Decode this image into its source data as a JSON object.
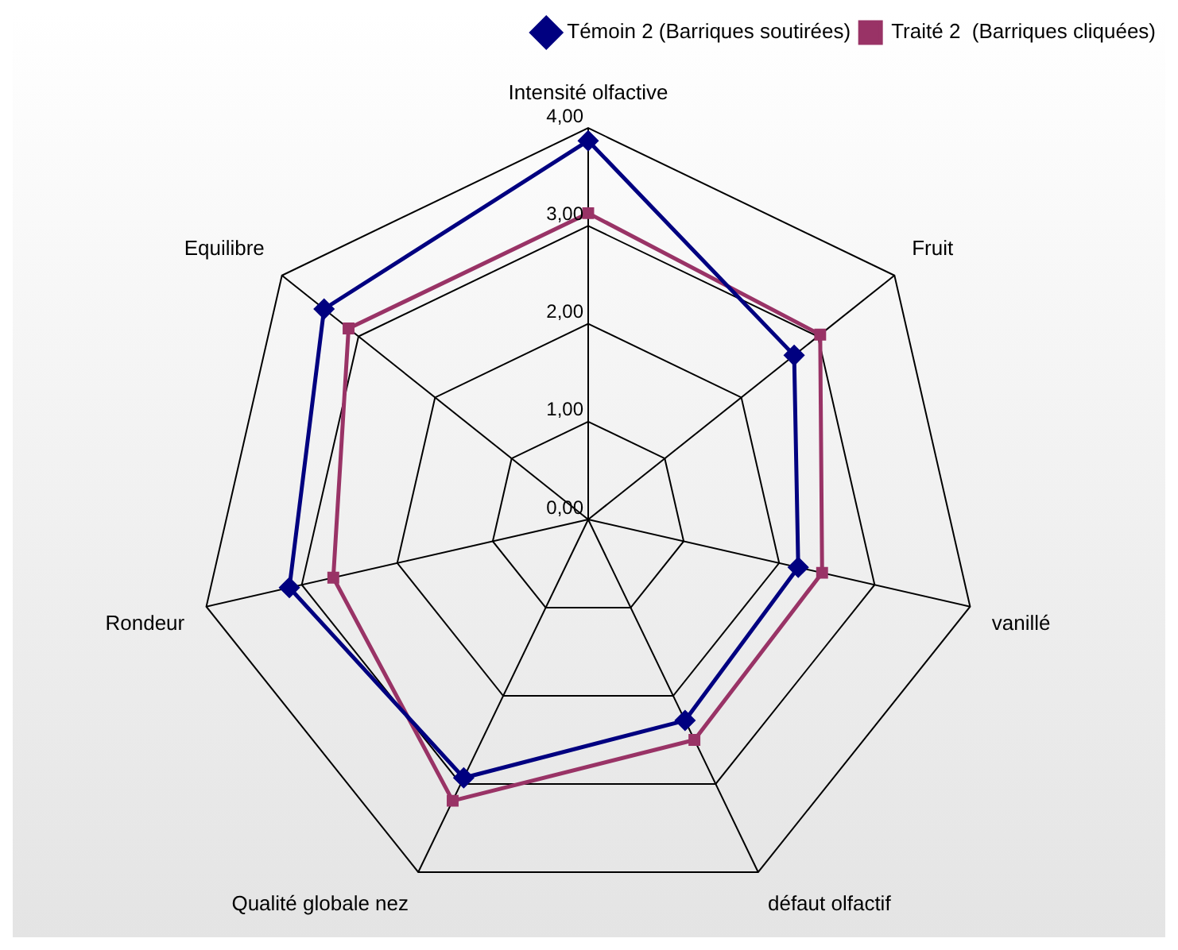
{
  "chart_data": {
    "type": "radar",
    "categories": [
      "Intensité olfactive",
      "Fruit",
      "vanillé",
      "défaut olfactif",
      "Qualité globale nez",
      "Rondeur",
      "Equilibre"
    ],
    "series": [
      {
        "name": "Témoin 2 (Barriques soutirées)",
        "color": "#000080",
        "marker": "diamond",
        "values": [
          3.87,
          2.69,
          2.2,
          2.28,
          2.93,
          3.13,
          3.45
        ]
      },
      {
        "name": "Traité 2  (Barriques cliquées)",
        "color": "#993366",
        "marker": "square",
        "values": [
          3.13,
          3.03,
          2.45,
          2.5,
          3.19,
          2.67,
          3.13
        ]
      }
    ],
    "ylim": [
      0,
      4
    ],
    "yticks": [
      {
        "value": 0,
        "label": "0,00"
      },
      {
        "value": 1,
        "label": "1,00"
      },
      {
        "value": 2,
        "label": "2,00"
      },
      {
        "value": 3,
        "label": "3,00"
      },
      {
        "value": 4,
        "label": "4,00"
      }
    ],
    "grid": true,
    "legend": "top right"
  }
}
